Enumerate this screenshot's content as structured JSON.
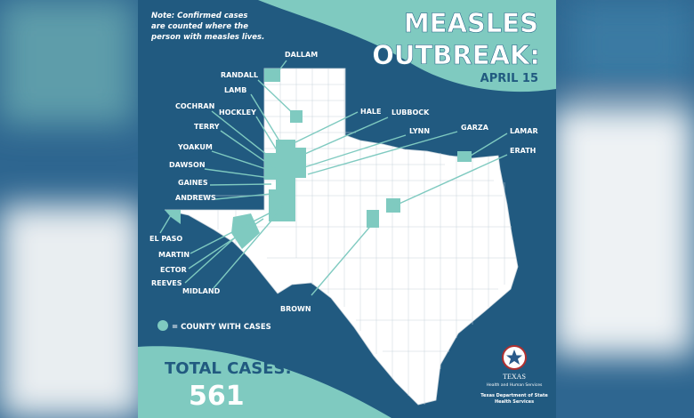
{
  "note": [
    "Note: Confirmed cases",
    "are counted where the",
    "person with measles lives."
  ],
  "title": [
    "MEASLES",
    "OUTBREAK:"
  ],
  "date": "APRIL 15",
  "counties": [
    "DALLAM",
    "RANDALL",
    "LAMB",
    "COCHRAN",
    "HOCKLEY",
    "TERRY",
    "YOAKUM",
    "DAWSON",
    "GAINES",
    "ANDREWS",
    "HALE",
    "LUBBOCK",
    "LYNN",
    "GARZA",
    "LAMAR",
    "ERATH",
    "EL PASO",
    "MARTIN",
    "ECTOR",
    "REEVES",
    "MIDLAND",
    "BROWN"
  ],
  "legend": "= COUNTY WITH CASES",
  "total": {
    "label": "TOTAL CASES:",
    "value": 561
  },
  "logo": {
    "name": "TEXAS",
    "agency": "Health and Human Services",
    "department": [
      "Texas Department of State",
      "Health Services"
    ]
  }
}
